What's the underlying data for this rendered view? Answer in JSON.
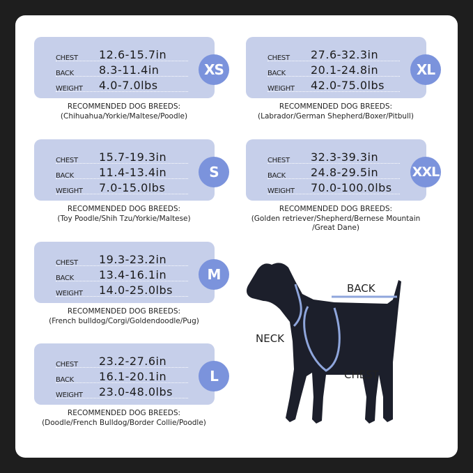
{
  "colors": {
    "card": "#c6cfea",
    "badge": "#7b93dc",
    "background": "#1e1e1e",
    "harness": "#8fa6dc",
    "dog": "#1c1f2b"
  },
  "row_labels": {
    "chest": "CHEST",
    "back": "BACK",
    "weight": "WEIGHT"
  },
  "breeds_heading": "RECOMMENDED DOG BREEDS:",
  "sizes": [
    {
      "size": "XS",
      "chest": "12.6-15.7in",
      "back": "8.3-11.4in",
      "weight": "4.0-7.0lbs",
      "breeds": [
        "(Chihuahua/Yorkie/Maltese/Poodle)"
      ]
    },
    {
      "size": "S",
      "chest": "15.7-19.3in",
      "back": "11.4-13.4in",
      "weight": "7.0-15.0lbs",
      "breeds": [
        "(Toy Poodle/Shih Tzu/Yorkie/Maltese)"
      ]
    },
    {
      "size": "M",
      "chest": "19.3-23.2in",
      "back": "13.4-16.1in",
      "weight": "14.0-25.0lbs",
      "breeds": [
        "(French bulldog/Corgi/Goldendoodle/Pug)"
      ]
    },
    {
      "size": "L",
      "chest": "23.2-27.6in",
      "back": "16.1-20.1in",
      "weight": "23.0-48.0lbs",
      "breeds": [
        "(Doodle/French Bulldog/Border Collie/Poodle)"
      ]
    },
    {
      "size": "XL",
      "chest": "27.6-32.3in",
      "back": "20.1-24.8in",
      "weight": "42.0-75.0lbs",
      "breeds": [
        "(Labrador/German Shepherd/Boxer/Pitbull)"
      ]
    },
    {
      "size": "XXL",
      "chest": "32.3-39.3in",
      "back": "24.8-29.5in",
      "weight": "70.0-100.0lbs",
      "breeds": [
        "(Golden retriever/Shepherd/Bernese Mountain",
        "/Great Dane)"
      ]
    }
  ],
  "diagram": {
    "back": "BACK",
    "neck": "NECK",
    "chest": "CHEST"
  }
}
